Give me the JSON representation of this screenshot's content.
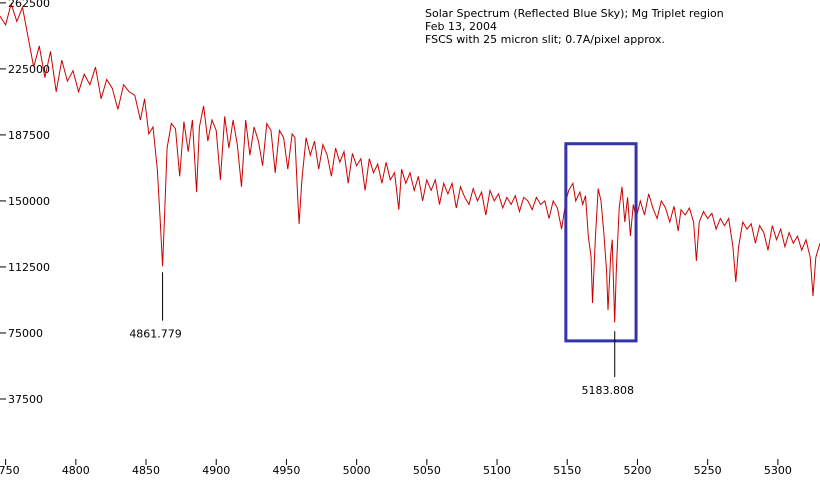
{
  "chart_data": {
    "type": "line",
    "title_lines": [
      "Solar Spectrum (Reflected Blue Sky); Mg Triplet region",
      "Feb 13, 2004",
      "FSCS with 25 micron slit; 0.7A/pixel approx."
    ],
    "xlabel": "",
    "ylabel": "",
    "xlim": [
      4746,
      5330
    ],
    "ylim": [
      0,
      263000
    ],
    "x_ticks": [
      4750,
      4800,
      4850,
      4900,
      4950,
      5000,
      5050,
      5100,
      5150,
      5200,
      5250,
      5300
    ],
    "y_ticks": [
      37500,
      75000,
      112500,
      150000,
      187500,
      225000,
      262500
    ],
    "grid": false,
    "line_color": "#cc0000",
    "highlight_color": "#3333aa",
    "highlight_box": {
      "x_range": [
        5149,
        5199
      ],
      "y_range": [
        70500,
        182500
      ]
    },
    "annotations": [
      {
        "label": "4861.779",
        "x": 4861.779,
        "y_from": 109500,
        "y_to": 82000
      },
      {
        "label": "5183.808",
        "x": 5183.808,
        "y_from": 76000,
        "y_to": 50000
      }
    ],
    "series": [
      {
        "points": [
          [
            4746,
            255000
          ],
          [
            4750,
            250000
          ],
          [
            4754,
            262000
          ],
          [
            4758,
            252000
          ],
          [
            4762,
            260000
          ],
          [
            4766,
            243000
          ],
          [
            4770,
            226000
          ],
          [
            4774,
            238000
          ],
          [
            4778,
            220000
          ],
          [
            4782,
            235000
          ],
          [
            4786,
            212000
          ],
          [
            4790,
            230000
          ],
          [
            4794,
            218000
          ],
          [
            4798,
            224000
          ],
          [
            4802,
            212000
          ],
          [
            4806,
            222000
          ],
          [
            4810,
            216000
          ],
          [
            4814,
            226000
          ],
          [
            4818,
            208000
          ],
          [
            4822,
            219000
          ],
          [
            4826,
            214000
          ],
          [
            4830,
            202000
          ],
          [
            4834,
            216000
          ],
          [
            4838,
            212000
          ],
          [
            4842,
            210000
          ],
          [
            4846,
            196000
          ],
          [
            4849,
            208000
          ],
          [
            4852,
            188000
          ],
          [
            4855,
            192000
          ],
          [
            4858,
            168000
          ],
          [
            4860,
            140000
          ],
          [
            4861.8,
            113000
          ],
          [
            4863,
            138000
          ],
          [
            4865,
            180000
          ],
          [
            4868,
            194000
          ],
          [
            4871,
            191000
          ],
          [
            4874,
            164000
          ],
          [
            4877,
            195000
          ],
          [
            4880,
            178000
          ],
          [
            4883,
            196000
          ],
          [
            4886,
            155000
          ],
          [
            4888,
            192000
          ],
          [
            4891,
            204000
          ],
          [
            4894,
            184000
          ],
          [
            4897,
            196000
          ],
          [
            4900,
            190000
          ],
          [
            4903,
            162000
          ],
          [
            4906,
            198000
          ],
          [
            4909,
            180000
          ],
          [
            4912,
            196000
          ],
          [
            4915,
            182000
          ],
          [
            4918,
            158000
          ],
          [
            4921,
            196000
          ],
          [
            4924,
            176000
          ],
          [
            4927,
            192000
          ],
          [
            4930,
            184000
          ],
          [
            4933,
            170000
          ],
          [
            4936,
            194000
          ],
          [
            4939,
            190000
          ],
          [
            4942,
            166000
          ],
          [
            4945,
            190000
          ],
          [
            4948,
            186000
          ],
          [
            4951,
            168000
          ],
          [
            4954,
            188000
          ],
          [
            4956,
            186000
          ],
          [
            4958,
            152000
          ],
          [
            4959,
            137000
          ],
          [
            4961,
            162000
          ],
          [
            4964,
            186000
          ],
          [
            4967,
            176000
          ],
          [
            4970,
            184000
          ],
          [
            4973,
            168000
          ],
          [
            4976,
            182000
          ],
          [
            4979,
            176000
          ],
          [
            4982,
            164000
          ],
          [
            4985,
            180000
          ],
          [
            4988,
            172000
          ],
          [
            4991,
            178000
          ],
          [
            4994,
            160000
          ],
          [
            4997,
            177000
          ],
          [
            5000,
            170000
          ],
          [
            5003,
            174000
          ],
          [
            5006,
            156000
          ],
          [
            5009,
            174000
          ],
          [
            5012,
            166000
          ],
          [
            5015,
            171000
          ],
          [
            5018,
            160000
          ],
          [
            5021,
            172000
          ],
          [
            5024,
            162000
          ],
          [
            5027,
            166000
          ],
          [
            5030,
            145000
          ],
          [
            5032,
            168000
          ],
          [
            5035,
            160000
          ],
          [
            5038,
            166000
          ],
          [
            5041,
            156000
          ],
          [
            5044,
            164000
          ],
          [
            5047,
            150000
          ],
          [
            5050,
            162000
          ],
          [
            5053,
            156000
          ],
          [
            5056,
            162000
          ],
          [
            5059,
            148000
          ],
          [
            5062,
            160000
          ],
          [
            5065,
            154000
          ],
          [
            5068,
            160000
          ],
          [
            5071,
            146000
          ],
          [
            5074,
            158000
          ],
          [
            5077,
            152000
          ],
          [
            5080,
            148000
          ],
          [
            5083,
            157000
          ],
          [
            5086,
            150000
          ],
          [
            5089,
            155000
          ],
          [
            5092,
            142000
          ],
          [
            5095,
            156000
          ],
          [
            5098,
            150000
          ],
          [
            5101,
            154000
          ],
          [
            5104,
            146000
          ],
          [
            5107,
            152000
          ],
          [
            5110,
            148000
          ],
          [
            5113,
            153000
          ],
          [
            5116,
            144000
          ],
          [
            5119,
            152000
          ],
          [
            5122,
            150000
          ],
          [
            5125,
            145000
          ],
          [
            5128,
            152000
          ],
          [
            5131,
            148000
          ],
          [
            5134,
            150000
          ],
          [
            5137,
            140000
          ],
          [
            5140,
            150000
          ],
          [
            5143,
            146000
          ],
          [
            5146,
            134000
          ],
          [
            5149,
            150000
          ],
          [
            5151,
            156000
          ],
          [
            5154,
            160000
          ],
          [
            5156,
            150000
          ],
          [
            5159,
            155000
          ],
          [
            5161,
            148000
          ],
          [
            5163,
            153000
          ],
          [
            5165,
            130000
          ],
          [
            5167,
            118000
          ],
          [
            5168,
            92000
          ],
          [
            5170,
            128000
          ],
          [
            5172,
            157000
          ],
          [
            5174,
            150000
          ],
          [
            5176,
            132000
          ],
          [
            5178,
            110000
          ],
          [
            5179,
            88000
          ],
          [
            5181,
            120000
          ],
          [
            5182,
            128000
          ],
          [
            5183.8,
            81000
          ],
          [
            5185,
            112000
          ],
          [
            5187,
            146000
          ],
          [
            5189,
            158000
          ],
          [
            5191,
            138000
          ],
          [
            5193,
            152000
          ],
          [
            5195,
            130000
          ],
          [
            5197,
            148000
          ],
          [
            5199,
            140000
          ],
          [
            5202,
            150000
          ],
          [
            5205,
            142000
          ],
          [
            5208,
            154000
          ],
          [
            5211,
            146000
          ],
          [
            5214,
            140000
          ],
          [
            5217,
            150000
          ],
          [
            5220,
            146000
          ],
          [
            5223,
            138000
          ],
          [
            5226,
            147000
          ],
          [
            5229,
            133000
          ],
          [
            5231,
            145000
          ],
          [
            5234,
            142000
          ],
          [
            5237,
            146000
          ],
          [
            5240,
            138000
          ],
          [
            5242,
            116000
          ],
          [
            5244,
            138000
          ],
          [
            5247,
            144000
          ],
          [
            5250,
            140000
          ],
          [
            5253,
            143000
          ],
          [
            5256,
            134000
          ],
          [
            5259,
            140000
          ],
          [
            5262,
            136000
          ],
          [
            5265,
            140000
          ],
          [
            5268,
            124000
          ],
          [
            5270,
            104000
          ],
          [
            5272,
            124000
          ],
          [
            5275,
            138000
          ],
          [
            5278,
            134000
          ],
          [
            5281,
            137000
          ],
          [
            5284,
            126000
          ],
          [
            5287,
            136000
          ],
          [
            5290,
            132000
          ],
          [
            5293,
            122000
          ],
          [
            5296,
            136000
          ],
          [
            5299,
            128000
          ],
          [
            5302,
            134000
          ],
          [
            5305,
            124000
          ],
          [
            5308,
            132000
          ],
          [
            5311,
            126000
          ],
          [
            5314,
            130000
          ],
          [
            5317,
            122000
          ],
          [
            5320,
            128000
          ],
          [
            5323,
            118000
          ],
          [
            5325,
            96000
          ],
          [
            5327,
            118000
          ],
          [
            5330,
            126000
          ]
        ]
      }
    ]
  }
}
